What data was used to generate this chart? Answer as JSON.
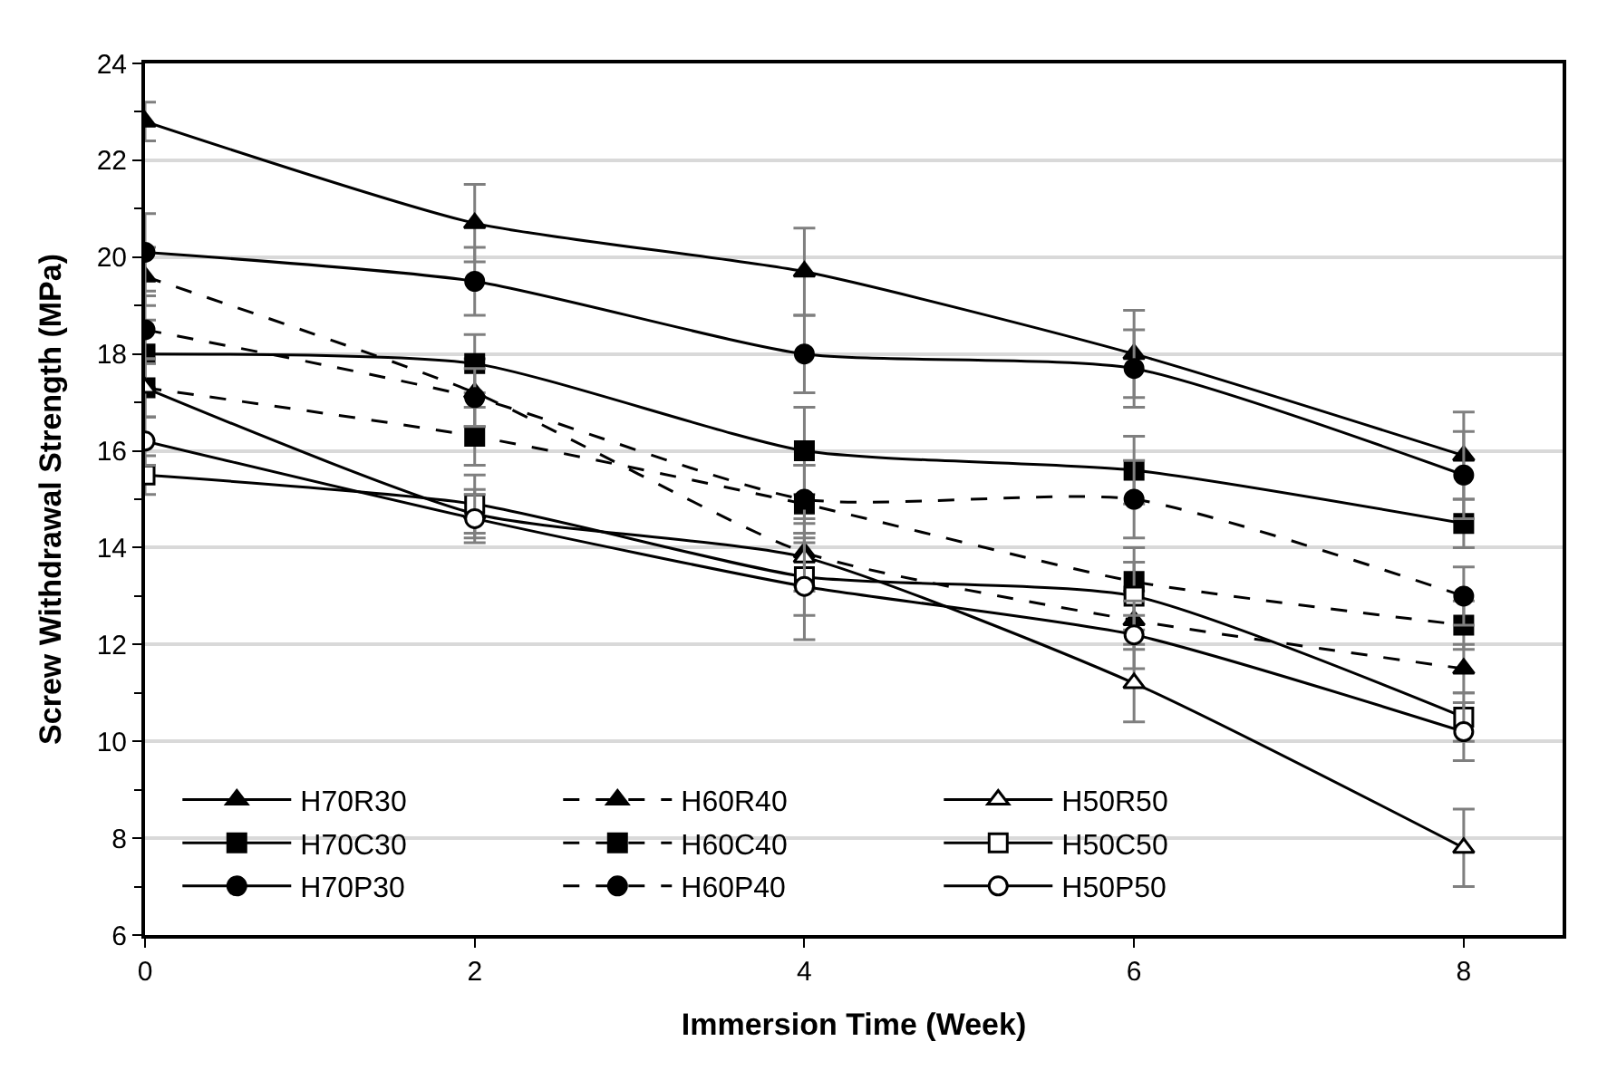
{
  "chart_data": {
    "type": "line",
    "xlabel": "Immersion Time (Week)",
    "ylabel": "Screw Withdrawal Strength (MPa)",
    "x": [
      0,
      2,
      4,
      6,
      8
    ],
    "xlim": [
      0,
      8.6
    ],
    "xticks": [
      0,
      2,
      4,
      6,
      8
    ],
    "ylim": [
      6,
      24
    ],
    "yticks": [
      6,
      8,
      10,
      12,
      14,
      16,
      18,
      20,
      22,
      24
    ],
    "grid": "y",
    "legend": "bottom left",
    "series": [
      {
        "name": "H70R30",
        "color": "#000000",
        "marker": "triangle",
        "line_style": "solid",
        "values": [
          22.8,
          20.7,
          19.7,
          18.0,
          15.9
        ],
        "errors": [
          0.4,
          0.8,
          0.9,
          0.9,
          0.9
        ]
      },
      {
        "name": "H60R40",
        "color": "#000000",
        "marker": "triangle",
        "line_style": "dashed",
        "values": [
          19.6,
          17.2,
          13.9,
          12.5,
          11.5
        ],
        "errors": [
          0.6,
          0.7,
          0.7,
          0.6,
          0.5
        ]
      },
      {
        "name": "H50R50",
        "color": "#000000",
        "marker": "triangle",
        "colors": [
          "#ffffff",
          "#ffffff",
          "#ffffff",
          "#ffffff",
          "#ffffff"
        ],
        "line_style": "solid",
        "values": [
          17.3,
          14.7,
          13.8,
          11.2,
          7.8
        ],
        "errors": [
          0.6,
          0.5,
          0.7,
          0.8,
          0.8
        ]
      },
      {
        "name": "H70C30",
        "color": "#000000",
        "marker": "square",
        "line_style": "solid",
        "values": [
          18.0,
          17.8,
          16.0,
          15.6,
          14.5
        ],
        "errors": [
          0.7,
          0.6,
          0.9,
          0.7,
          0.5
        ]
      },
      {
        "name": "H60C40",
        "color": "#000000",
        "marker": "square",
        "line_style": "dashed",
        "values": [
          17.3,
          16.3,
          14.9,
          13.3,
          12.4
        ],
        "errors": [
          0.6,
          0.6,
          0.8,
          0.7,
          0.5
        ]
      },
      {
        "name": "H50C50",
        "color": "#000000",
        "marker": "square",
        "colors": [
          "#ffffff",
          "#ffffff",
          "#ffffff",
          "#ffffff",
          "#ffffff"
        ],
        "line_style": "solid",
        "values": [
          15.5,
          14.9,
          13.4,
          13.0,
          10.5
        ],
        "errors": [
          0.4,
          0.6,
          0.8,
          0.7,
          0.5
        ]
      },
      {
        "name": "H70P30",
        "color": "#000000",
        "marker": "circle",
        "line_style": "solid",
        "values": [
          20.1,
          19.5,
          18.0,
          17.7,
          15.5
        ],
        "errors": [
          0.8,
          0.7,
          0.8,
          0.8,
          0.9
        ]
      },
      {
        "name": "H60P40",
        "color": "#000000",
        "marker": "circle",
        "line_style": "dashed",
        "values": [
          18.5,
          17.1,
          15.0,
          15.0,
          13.0
        ],
        "errors": [
          0.7,
          0.6,
          0.7,
          0.8,
          0.6
        ]
      },
      {
        "name": "H50P50",
        "color": "#000000",
        "marker": "circle",
        "colors": [
          "#ffffff",
          "#ffffff",
          "#ffffff",
          "#ffffff",
          "#ffffff"
        ],
        "line_style": "solid",
        "values": [
          16.2,
          14.6,
          13.2,
          12.2,
          10.2
        ],
        "errors": [
          0.5,
          0.5,
          1.1,
          0.7,
          0.6
        ]
      }
    ]
  }
}
